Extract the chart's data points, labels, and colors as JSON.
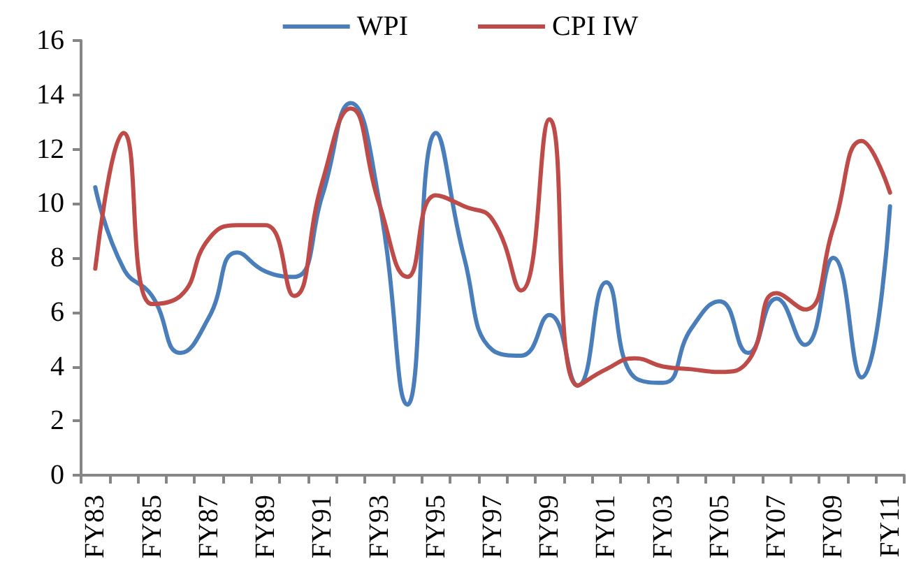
{
  "chart_data": {
    "type": "line",
    "categories": [
      "FY83",
      null,
      "FY85",
      null,
      "FY87",
      null,
      "FY89",
      null,
      "FY91",
      null,
      "FY93",
      null,
      "FY95",
      null,
      "FY97",
      null,
      "FY99",
      null,
      "FY01",
      null,
      "FY03",
      null,
      "FY05",
      null,
      "FY07",
      null,
      "FY09",
      null,
      "FY11"
    ],
    "series": [
      {
        "name": "WPI",
        "color": "#4a7ebb",
        "values": [
          10.6,
          7.6,
          6.6,
          4.5,
          5.8,
          8.2,
          7.5,
          7.3,
          10.3,
          13.7,
          10.1,
          2.6,
          12.6,
          8.0,
          4.6,
          4.4,
          5.9,
          3.3,
          7.1,
          3.6,
          3.4,
          5.4,
          6.4,
          4.5,
          6.5,
          4.8,
          8.0,
          3.6,
          9.9
        ]
      },
      {
        "name": "CPI IW",
        "color": "#be4b48",
        "values": [
          7.6,
          12.6,
          6.3,
          6.6,
          8.7,
          9.2,
          9.2,
          6.6,
          10.8,
          13.5,
          10.0,
          7.3,
          10.3,
          9.9,
          9.4,
          6.8,
          13.1,
          3.3,
          3.9,
          4.3,
          4.0,
          3.9,
          3.8,
          4.2,
          6.7,
          6.1,
          9.1,
          12.3,
          10.4
        ]
      }
    ],
    "ylim": [
      0,
      16
    ],
    "yticks": [
      0,
      2,
      4,
      6,
      8,
      10,
      12,
      14,
      16
    ],
    "grid": false,
    "legend": "top",
    "marker": "none",
    "line_style": "solid"
  }
}
